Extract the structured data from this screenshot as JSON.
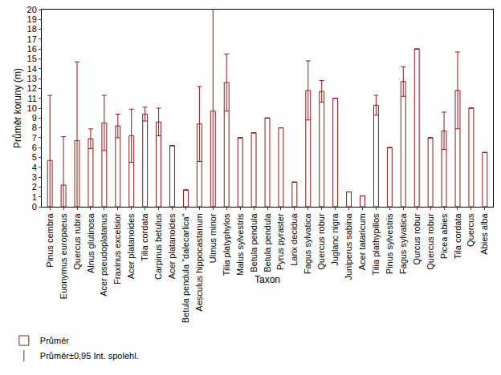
{
  "chart_data": {
    "type": "bar",
    "x_label": "Taxon",
    "y_label": "Průměr koruny (m)",
    "categories": [
      "Pinus cembra",
      "Euonymus europaeus",
      "Quercus rubra",
      "Alnus glutinosa",
      "Acer pseudoplatanus",
      "Fraxinus excelsior",
      "Acer platanoides",
      "Tilia cordata",
      "Carpinus betulus",
      "Acer platanoides",
      "Betula pendula \"dalecarlica\"",
      "Aesculus hippocastanum",
      "Ulmus minor",
      "Tilia platyphylos",
      "Malus sylvestris",
      "Betula pendula",
      "Betula pendula",
      "Pyrus pyraster",
      "Larix decidua",
      "Fagus sylvatica",
      "Quercus robur",
      "Juglanc nigra",
      "Juniperus sabina",
      "Acer tataricum",
      "Tilia plathypillos",
      "Pinus sylvestris",
      "Fagus sylvatica",
      "Qurcus robur",
      "Quercus robur",
      "Picea abies",
      "Tila cordata",
      "Quercus",
      "Abies alba"
    ],
    "series": [
      {
        "name": "Průměr",
        "error_name": "Průměr±0,95 Int. spolehl.",
        "color": "#8b1a1a",
        "values": [
          4.7,
          2.2,
          6.7,
          6.9,
          8.5,
          8.2,
          7.2,
          9.4,
          8.6,
          6.2,
          1.7,
          8.4,
          9.7,
          12.6,
          7.0,
          7.5,
          9.0,
          8.0,
          2.5,
          11.8,
          11.7,
          11.0,
          1.5,
          1.1,
          10.3,
          6.0,
          12.7,
          16.0,
          7.0,
          7.7,
          11.8,
          10.0,
          5.5
        ],
        "error": [
          6.6,
          4.9,
          8.0,
          1.0,
          2.8,
          1.2,
          2.7,
          0.7,
          1.4,
          0,
          0,
          3.8,
          11.0,
          2.9,
          0,
          0,
          0,
          0,
          0,
          3.0,
          1.1,
          0,
          0,
          0,
          1.0,
          0,
          1.5,
          0,
          0,
          1.9,
          3.9,
          0,
          0
        ]
      }
    ],
    "ylim": [
      0,
      20
    ],
    "yticks": [
      0,
      1,
      2,
      3,
      4,
      5,
      6,
      7,
      8,
      9,
      10,
      11,
      12,
      13,
      14,
      15,
      16,
      17,
      18,
      19,
      20
    ],
    "grid": false,
    "legend": "bottom left"
  }
}
